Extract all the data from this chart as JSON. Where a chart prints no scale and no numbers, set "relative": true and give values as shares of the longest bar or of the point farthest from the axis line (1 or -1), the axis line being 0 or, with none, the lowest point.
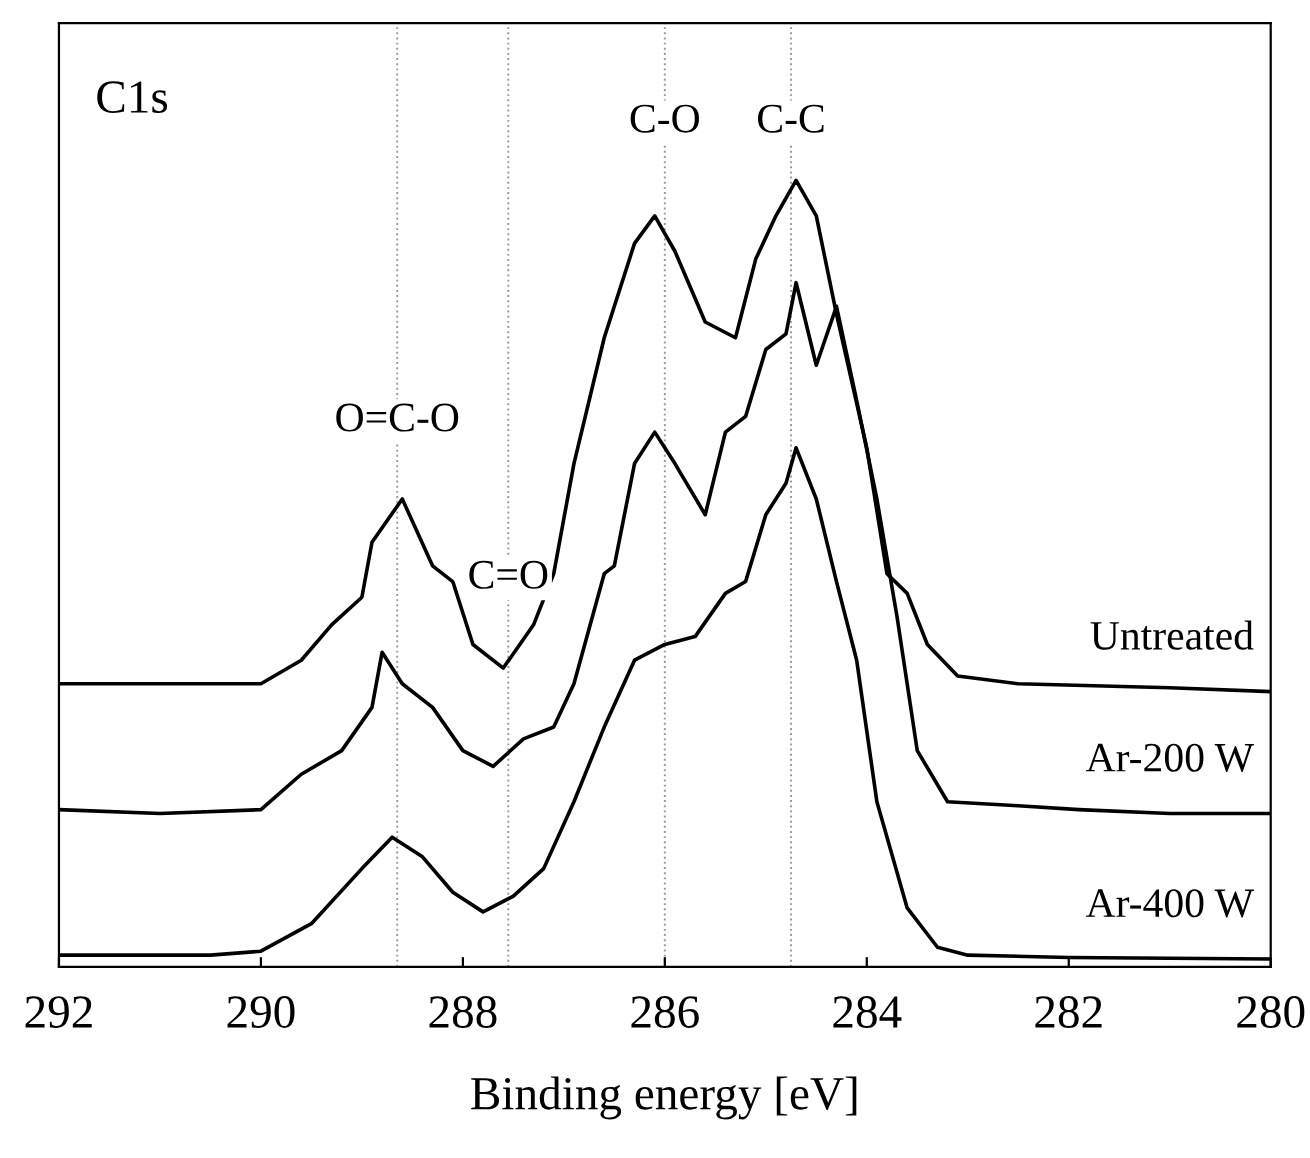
{
  "chart_data": {
    "type": "line",
    "relative": true,
    "xlabel": "Binding energy [eV]",
    "xlim": [
      292,
      280
    ],
    "xticks": [
      292,
      290,
      288,
      286,
      284,
      282,
      280
    ],
    "tick_labels": "x",
    "legend": false,
    "grid": false,
    "marker": "none",
    "line_style": "solid",
    "annotations": [
      "C1s",
      {
        "text": "O=C-O",
        "x": 288.65,
        "y": 0.67
      },
      {
        "text": "C=O",
        "x": 287.55,
        "y": 0.47
      },
      {
        "text": "C-O",
        "x": 286.0,
        "y": 1.05
      },
      {
        "text": "C-C",
        "x": 284.75,
        "y": 1.05
      }
    ],
    "ref_lines": [
      {
        "axis": "x",
        "value": 288.65,
        "color": "#999999",
        "line_style": "dotted"
      },
      {
        "axis": "x",
        "value": 287.55,
        "color": "#999999",
        "line_style": "dotted"
      },
      {
        "axis": "x",
        "value": 286.0,
        "color": "#999999",
        "line_style": "dotted"
      },
      {
        "axis": "x",
        "value": 284.75,
        "color": "#999999",
        "line_style": "dotted"
      }
    ],
    "series": [
      {
        "name": "Untreated",
        "color": "#000000",
        "x": [
          292,
          290.5,
          290,
          289.6,
          289.3,
          289.0,
          288.9,
          288.6,
          288.3,
          288.1,
          287.9,
          287.6,
          287.3,
          287.1,
          286.9,
          286.6,
          286.3,
          286.1,
          285.9,
          285.6,
          285.3,
          285.1,
          284.9,
          284.7,
          284.5,
          284.3,
          284.0,
          283.8,
          283.6,
          283.4,
          283.1,
          282.5,
          281,
          280
        ],
        "values": [
          0.36,
          0.36,
          0.36,
          0.39,
          0.435,
          0.47,
          0.54,
          0.595,
          0.51,
          0.49,
          0.41,
          0.38,
          0.435,
          0.5,
          0.64,
          0.8,
          0.92,
          0.955,
          0.91,
          0.82,
          0.8,
          0.9,
          0.955,
          1.0,
          0.955,
          0.83,
          0.66,
          0.5,
          0.475,
          0.41,
          0.37,
          0.36,
          0.355,
          0.35
        ]
      },
      {
        "name": "Ar-200 W",
        "color": "#000000",
        "x": [
          292,
          291,
          290,
          289.6,
          289.2,
          288.9,
          288.8,
          288.6,
          288.3,
          288.0,
          287.7,
          287.4,
          287.1,
          286.9,
          286.6,
          286.5,
          286.3,
          286.1,
          285.9,
          285.6,
          285.4,
          285.2,
          285.0,
          284.8,
          284.7,
          284.5,
          284.3,
          284.1,
          283.9,
          283.7,
          283.5,
          283.2,
          282.5,
          281.9,
          281,
          280
        ],
        "values": [
          0.2,
          0.195,
          0.2,
          0.245,
          0.275,
          0.33,
          0.4,
          0.36,
          0.33,
          0.275,
          0.255,
          0.29,
          0.305,
          0.36,
          0.5,
          0.51,
          0.64,
          0.68,
          0.64,
          0.575,
          0.68,
          0.7,
          0.785,
          0.805,
          0.87,
          0.765,
          0.84,
          0.72,
          0.595,
          0.445,
          0.275,
          0.21,
          0.205,
          0.2,
          0.195,
          0.195
        ]
      },
      {
        "name": "Ar-400 W",
        "color": "#000000",
        "x": [
          292,
          290.5,
          290,
          289.5,
          289.0,
          288.7,
          288.4,
          288.1,
          287.8,
          287.5,
          287.2,
          286.9,
          286.6,
          286.3,
          286.0,
          285.7,
          285.4,
          285.2,
          285.0,
          284.8,
          284.7,
          284.5,
          284.3,
          284.1,
          283.9,
          283.6,
          283.3,
          283,
          282,
          280
        ],
        "values": [
          0.015,
          0.015,
          0.02,
          0.055,
          0.125,
          0.165,
          0.14,
          0.095,
          0.07,
          0.09,
          0.125,
          0.21,
          0.305,
          0.39,
          0.41,
          0.42,
          0.475,
          0.49,
          0.575,
          0.615,
          0.66,
          0.595,
          0.49,
          0.39,
          0.21,
          0.075,
          0.025,
          0.015,
          0.012,
          0.01
        ]
      }
    ]
  }
}
